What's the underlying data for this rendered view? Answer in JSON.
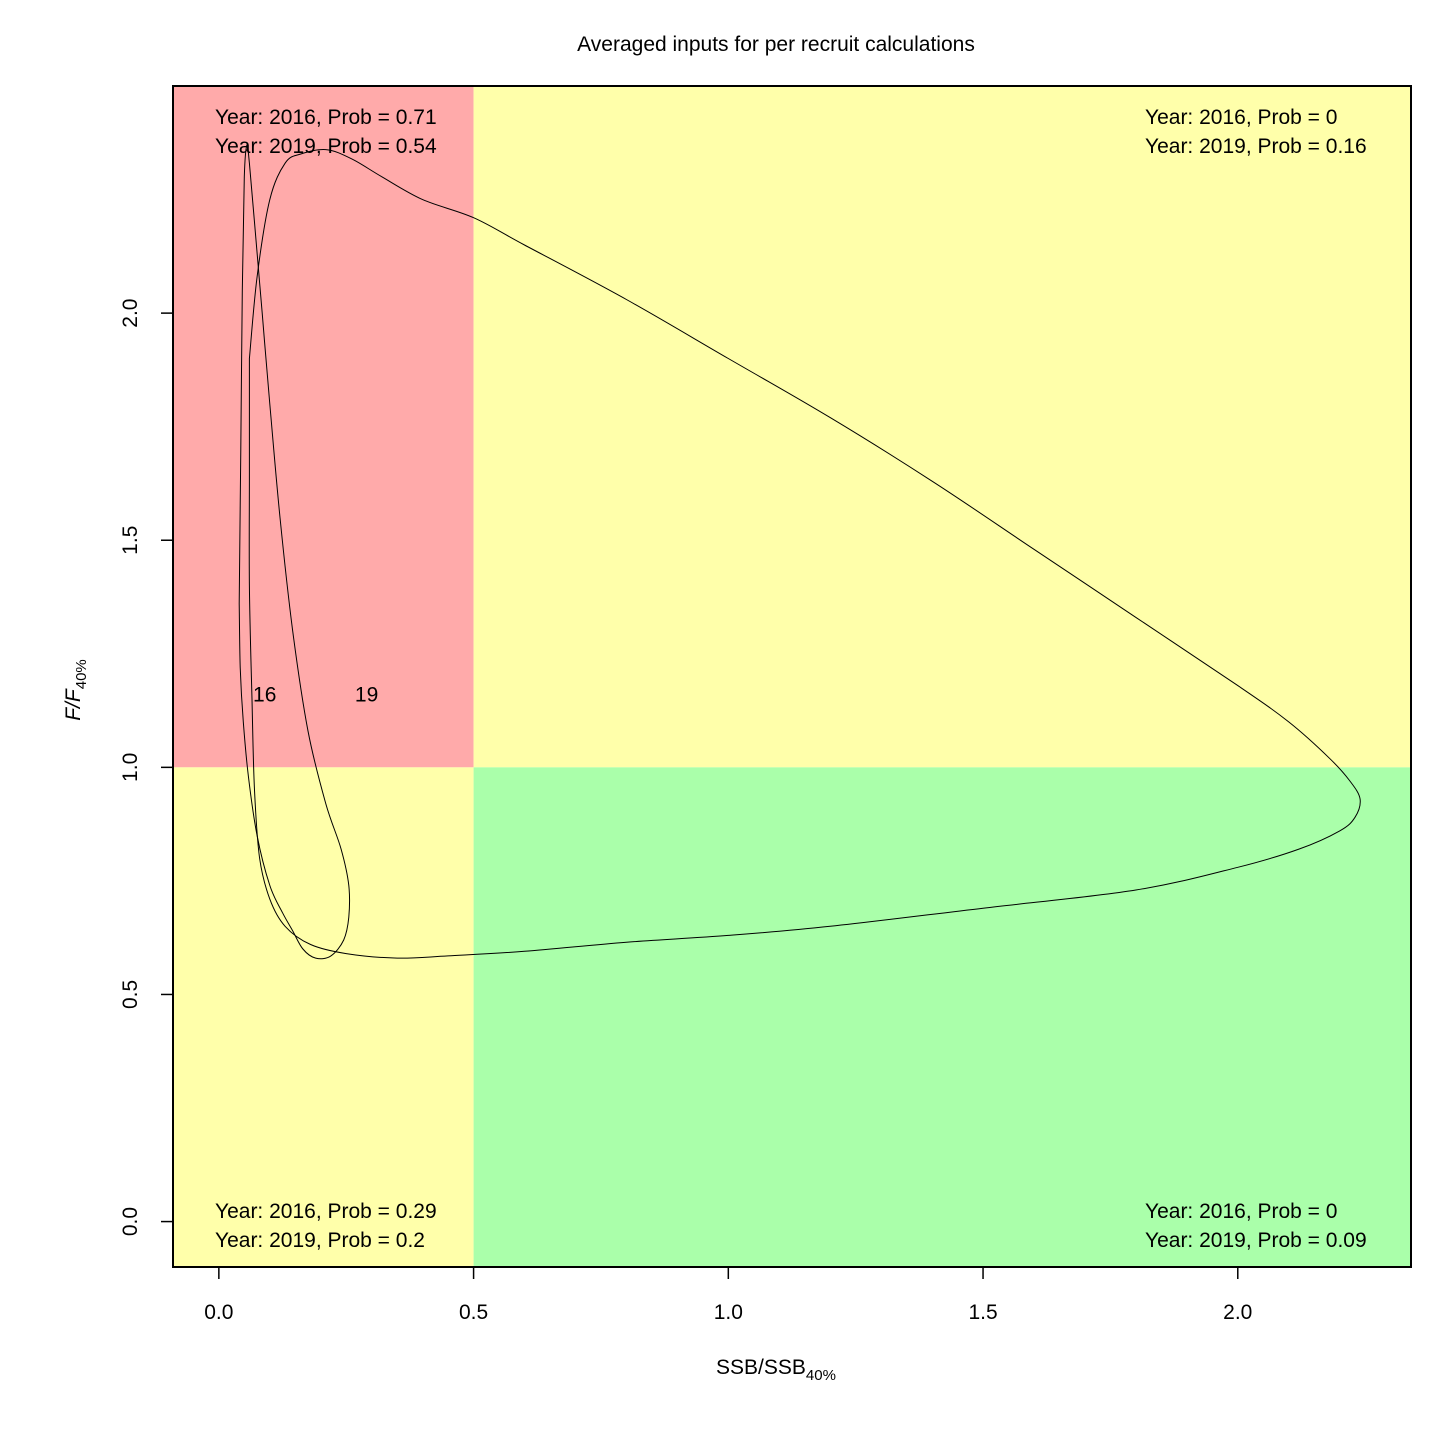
{
  "chart_data": {
    "type": "line",
    "title": "Averaged inputs for per recruit calculations",
    "xlabel": {
      "main": "SSB/SSB",
      "sub": "40%"
    },
    "ylabel": {
      "main": "F/F",
      "sub": "40%"
    },
    "xlim": [
      -0.09,
      2.34
    ],
    "ylim": [
      -0.1,
      2.5
    ],
    "x_ticks": [
      "0.0",
      "0.5",
      "1.0",
      "1.5",
      "2.0"
    ],
    "y_ticks": [
      "0.0",
      "0.5",
      "1.0",
      "1.5",
      "2.0"
    ],
    "reference": {
      "x": 0.5,
      "y": 1.0
    },
    "quadrant_colors": {
      "overfished_overfishing": "#ffaaaa",
      "warning": "#ffffaa",
      "healthy": "#aaffaa"
    },
    "quadrant_annotations": {
      "top_left": [
        "Year: 2016, Prob = 0.71",
        "Year: 2019, Prob = 0.54"
      ],
      "top_right": [
        "Year: 2016, Prob = 0",
        "Year: 2019, Prob = 0.16"
      ],
      "bottom_left": [
        "Year: 2016, Prob = 0.29",
        "Year: 2019, Prob = 0.2"
      ],
      "bottom_right": [
        "Year: 2016, Prob = 0",
        "Year: 2019, Prob = 0.09"
      ]
    },
    "series": [
      {
        "name": "16",
        "label_point": [
          0.09,
          1.16
        ],
        "x": [
          0.04,
          0.043,
          0.046,
          0.05,
          0.055,
          0.06,
          0.07,
          0.085,
          0.1,
          0.12,
          0.145,
          0.175,
          0.21,
          0.24,
          0.255,
          0.255,
          0.245,
          0.22,
          0.19,
          0.165,
          0.145,
          0.125,
          0.1,
          0.075,
          0.058,
          0.048,
          0.042,
          0.04
        ],
        "y": [
          1.36,
          1.7,
          2.05,
          2.3,
          2.37,
          2.33,
          2.2,
          2.0,
          1.8,
          1.55,
          1.3,
          1.08,
          0.92,
          0.82,
          0.74,
          0.67,
          0.62,
          0.585,
          0.58,
          0.6,
          0.64,
          0.68,
          0.74,
          0.85,
          0.98,
          1.1,
          1.22,
          1.36
        ]
      },
      {
        "name": "19",
        "label_point": [
          0.29,
          1.16
        ],
        "x": [
          0.06,
          0.075,
          0.1,
          0.13,
          0.16,
          0.21,
          0.26,
          0.32,
          0.4,
          0.5,
          0.6,
          0.8,
          1.0,
          1.2,
          1.4,
          1.6,
          1.8,
          2.0,
          2.1,
          2.18,
          2.22,
          2.24,
          2.23,
          2.2,
          2.12,
          2.0,
          1.8,
          1.5,
          1.2,
          1.0,
          0.8,
          0.6,
          0.45,
          0.35,
          0.25,
          0.18,
          0.13,
          0.1,
          0.08,
          0.07,
          0.065,
          0.06,
          0.06,
          0.06
        ],
        "y": [
          1.9,
          2.08,
          2.25,
          2.33,
          2.35,
          2.36,
          2.34,
          2.3,
          2.25,
          2.21,
          2.15,
          2.03,
          1.9,
          1.77,
          1.63,
          1.48,
          1.33,
          1.18,
          1.1,
          1.02,
          0.97,
          0.93,
          0.89,
          0.86,
          0.82,
          0.78,
          0.73,
          0.69,
          0.65,
          0.63,
          0.615,
          0.595,
          0.585,
          0.58,
          0.59,
          0.61,
          0.65,
          0.71,
          0.8,
          0.95,
          1.15,
          1.4,
          1.65,
          1.9
        ]
      }
    ]
  }
}
